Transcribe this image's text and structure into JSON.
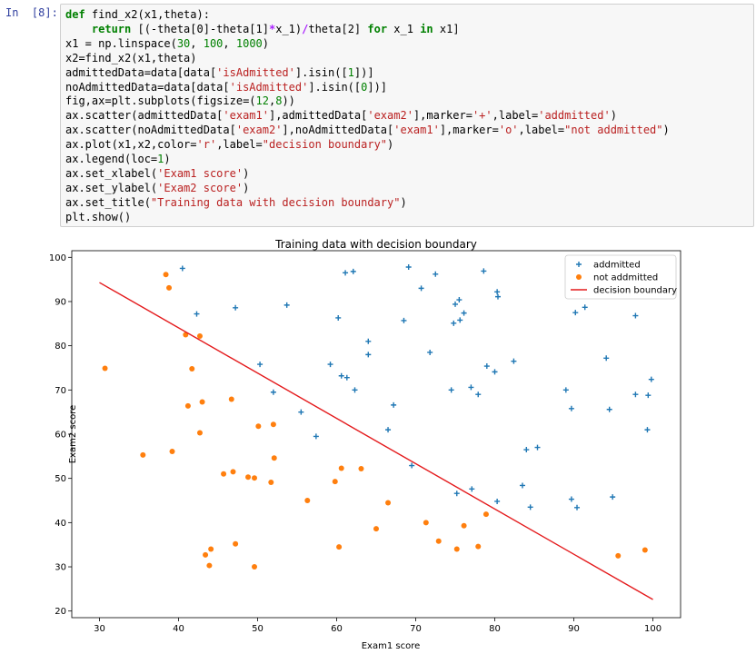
{
  "prompt": "In  [8]:",
  "code_lines": [
    [
      [
        "kw",
        "def "
      ],
      [
        "tx",
        "find_x2(x1,theta):"
      ]
    ],
    [
      [
        "tx",
        "    "
      ],
      [
        "kw",
        "return "
      ],
      [
        "tx",
        "[(-theta[0]-theta[1]"
      ],
      [
        "op",
        "*"
      ],
      [
        "tx",
        "x_1)"
      ],
      [
        "op",
        "/"
      ],
      [
        "tx",
        "theta[2] "
      ],
      [
        "kw",
        "for "
      ],
      [
        "tx",
        "x_1 "
      ],
      [
        "kw",
        "in "
      ],
      [
        "tx",
        "x1]"
      ]
    ],
    [
      [
        "tx",
        "x1 = np.linspace("
      ],
      [
        "nu",
        "30"
      ],
      [
        "tx",
        ", "
      ],
      [
        "nu",
        "100"
      ],
      [
        "tx",
        ", "
      ],
      [
        "nu",
        "1000"
      ],
      [
        "tx",
        ")"
      ]
    ],
    [
      [
        "tx",
        "x2=find_x2(x1,theta)"
      ]
    ],
    [
      [
        "tx",
        "admittedData=data[data["
      ],
      [
        "st",
        "'isAdmitted'"
      ],
      [
        "tx",
        "].isin(["
      ],
      [
        "nu",
        "1"
      ],
      [
        "tx",
        "])]"
      ]
    ],
    [
      [
        "tx",
        "noAdmittedData=data[data["
      ],
      [
        "st",
        "'isAdmitted'"
      ],
      [
        "tx",
        "].isin(["
      ],
      [
        "nu",
        "0"
      ],
      [
        "tx",
        "])]"
      ]
    ],
    [
      [
        "tx",
        "fig,ax=plt.subplots(figsize=("
      ],
      [
        "nu",
        "12"
      ],
      [
        "tx",
        ","
      ],
      [
        "nu",
        "8"
      ],
      [
        "tx",
        "))"
      ]
    ],
    [
      [
        "tx",
        "ax.scatter(admittedData["
      ],
      [
        "st",
        "'exam1'"
      ],
      [
        "tx",
        "],admittedData["
      ],
      [
        "st",
        "'exam2'"
      ],
      [
        "tx",
        "],marker="
      ],
      [
        "st",
        "'+'"
      ],
      [
        "tx",
        ",label="
      ],
      [
        "st",
        "'addmitted'"
      ],
      [
        "tx",
        ")"
      ]
    ],
    [
      [
        "tx",
        "ax.scatter(noAdmittedData["
      ],
      [
        "st",
        "'exam2'"
      ],
      [
        "tx",
        "],noAdmittedData["
      ],
      [
        "st",
        "'exam1'"
      ],
      [
        "tx",
        "],marker="
      ],
      [
        "st",
        "'o'"
      ],
      [
        "tx",
        ",label="
      ],
      [
        "st",
        "\"not addmitted\""
      ],
      [
        "tx",
        ")"
      ]
    ],
    [
      [
        "tx",
        "ax.plot(x1,x2,color="
      ],
      [
        "st",
        "'r'"
      ],
      [
        "tx",
        ",label="
      ],
      [
        "st",
        "\"decision boundary\""
      ],
      [
        "tx",
        ")"
      ]
    ],
    [
      [
        "tx",
        "ax.legend(loc="
      ],
      [
        "nu",
        "1"
      ],
      [
        "tx",
        ")"
      ]
    ],
    [
      [
        "tx",
        "ax.set_xlabel("
      ],
      [
        "st",
        "'Exam1 score'"
      ],
      [
        "tx",
        ")"
      ]
    ],
    [
      [
        "tx",
        "ax.set_ylabel("
      ],
      [
        "st",
        "'Exam2 score'"
      ],
      [
        "tx",
        ")"
      ]
    ],
    [
      [
        "tx",
        "ax.set_title("
      ],
      [
        "st",
        "\"Training data with decision boundary\""
      ],
      [
        "tx",
        ")"
      ]
    ],
    [
      [
        "tx",
        "plt.show()"
      ]
    ]
  ],
  "chart_data": {
    "type": "scatter",
    "title": "Training data with decision boundary",
    "xlabel": "Exam1 score",
    "ylabel": "Exam2 score",
    "xlim": [
      26.5,
      103.5
    ],
    "ylim": [
      18.5,
      101.5
    ],
    "xticks": [
      30,
      40,
      50,
      60,
      70,
      80,
      90,
      100
    ],
    "yticks": [
      20,
      30,
      40,
      50,
      60,
      70,
      80,
      90,
      100
    ],
    "legend_position": "top-right",
    "series": [
      {
        "name": "addmitted",
        "marker": "+",
        "color": "#1f77b4",
        "points": [
          [
            40.5,
            97.5
          ],
          [
            42.3,
            87.2
          ],
          [
            47.2,
            88.6
          ],
          [
            53.7,
            89.2
          ],
          [
            50.3,
            75.8
          ],
          [
            52.0,
            69.5
          ],
          [
            55.5,
            65.0
          ],
          [
            57.4,
            59.5
          ],
          [
            59.2,
            75.8
          ],
          [
            60.2,
            86.3
          ],
          [
            60.6,
            73.2
          ],
          [
            61.1,
            96.5
          ],
          [
            61.3,
            72.8
          ],
          [
            62.1,
            96.8
          ],
          [
            62.3,
            70.0
          ],
          [
            64.0,
            81.0
          ],
          [
            64.0,
            78.0
          ],
          [
            66.5,
            61.0
          ],
          [
            67.2,
            66.6
          ],
          [
            68.5,
            85.7
          ],
          [
            69.1,
            97.8
          ],
          [
            69.5,
            52.9
          ],
          [
            70.7,
            93.0
          ],
          [
            71.8,
            78.5
          ],
          [
            72.5,
            96.2
          ],
          [
            74.5,
            70.0
          ],
          [
            74.8,
            85.1
          ],
          [
            75.0,
            89.4
          ],
          [
            75.2,
            46.6
          ],
          [
            75.5,
            90.4
          ],
          [
            75.6,
            85.8
          ],
          [
            76.1,
            87.4
          ],
          [
            77.0,
            70.6
          ],
          [
            77.1,
            47.6
          ],
          [
            77.9,
            69.0
          ],
          [
            78.6,
            96.9
          ],
          [
            79.0,
            75.4
          ],
          [
            80.0,
            74.1
          ],
          [
            80.3,
            92.2
          ],
          [
            80.4,
            91.1
          ],
          [
            80.3,
            44.8
          ],
          [
            82.4,
            76.5
          ],
          [
            83.5,
            48.4
          ],
          [
            84.0,
            56.5
          ],
          [
            84.5,
            43.5
          ],
          [
            85.4,
            57.0
          ],
          [
            89.0,
            70.0
          ],
          [
            89.7,
            65.8
          ],
          [
            89.7,
            45.3
          ],
          [
            90.2,
            87.5
          ],
          [
            90.4,
            43.4
          ],
          [
            91.4,
            88.7
          ],
          [
            94.1,
            77.2
          ],
          [
            94.5,
            65.6
          ],
          [
            94.9,
            45.8
          ],
          [
            97.8,
            86.8
          ],
          [
            97.8,
            69.0
          ],
          [
            99.3,
            61.0
          ],
          [
            99.4,
            68.8
          ],
          [
            99.8,
            72.4
          ]
        ]
      },
      {
        "name": "not addmitted",
        "marker": "o",
        "color": "#ff7f0e",
        "points": [
          [
            30.7,
            74.9
          ],
          [
            35.5,
            55.3
          ],
          [
            38.4,
            96.1
          ],
          [
            38.8,
            93.1
          ],
          [
            39.2,
            56.1
          ],
          [
            40.9,
            82.5
          ],
          [
            41.2,
            66.4
          ],
          [
            41.7,
            74.8
          ],
          [
            42.7,
            82.2
          ],
          [
            42.7,
            60.3
          ],
          [
            43.0,
            67.3
          ],
          [
            43.4,
            32.7
          ],
          [
            43.9,
            30.3
          ],
          [
            44.1,
            34.0
          ],
          [
            45.7,
            51.0
          ],
          [
            46.7,
            67.9
          ],
          [
            46.9,
            51.5
          ],
          [
            47.2,
            35.2
          ],
          [
            48.8,
            50.3
          ],
          [
            49.6,
            50.1
          ],
          [
            49.6,
            30.0
          ],
          [
            50.1,
            61.8
          ],
          [
            51.7,
            49.1
          ],
          [
            52.0,
            62.2
          ],
          [
            52.1,
            54.6
          ],
          [
            56.3,
            45.0
          ],
          [
            59.8,
            49.3
          ],
          [
            60.3,
            34.5
          ],
          [
            60.6,
            52.3
          ],
          [
            63.1,
            52.2
          ],
          [
            65.0,
            38.6
          ],
          [
            66.5,
            44.5
          ],
          [
            71.3,
            40.0
          ],
          [
            72.9,
            35.8
          ],
          [
            75.2,
            34.0
          ],
          [
            76.1,
            39.3
          ],
          [
            77.9,
            34.6
          ],
          [
            78.9,
            41.9
          ],
          [
            95.6,
            32.5
          ],
          [
            99.0,
            33.8
          ]
        ]
      },
      {
        "name": "decision boundary",
        "type": "line",
        "color": "#e41a1c",
        "points": [
          [
            30,
            94.3
          ],
          [
            100,
            22.6
          ]
        ]
      }
    ]
  }
}
